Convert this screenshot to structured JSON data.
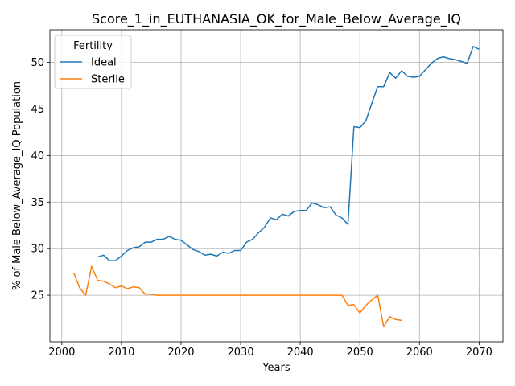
{
  "chart_data": {
    "type": "line",
    "title": "Score_1_in_EUTHANASIA_OK_for_Male_Below_Average_IQ",
    "xlabel": "Years",
    "ylabel": "% of Male Below_Average_IQ Population",
    "xlim": [
      1998,
      2074
    ],
    "ylim": [
      20.0,
      53.5
    ],
    "xticks": [
      2000,
      2010,
      2020,
      2030,
      2040,
      2050,
      2060,
      2070
    ],
    "yticks": [
      25,
      30,
      35,
      40,
      45,
      50
    ],
    "grid": true,
    "legend": {
      "title": "Fertility",
      "position": "top-left"
    },
    "series": [
      {
        "name": "Ideal",
        "color": "#1f77b4",
        "x": [
          2006,
          2007,
          2008,
          2009,
          2010,
          2011,
          2012,
          2013,
          2014,
          2015,
          2016,
          2017,
          2018,
          2019,
          2020,
          2021,
          2022,
          2023,
          2024,
          2025,
          2026,
          2027,
          2028,
          2029,
          2030,
          2031,
          2032,
          2033,
          2034,
          2035,
          2036,
          2037,
          2038,
          2039,
          2040,
          2041,
          2042,
          2043,
          2044,
          2045,
          2046,
          2047,
          2048,
          2049,
          2050,
          2051,
          2052,
          2053,
          2054,
          2055,
          2056,
          2057,
          2058,
          2059,
          2060,
          2061,
          2062,
          2063,
          2064,
          2065,
          2066,
          2067,
          2068,
          2069,
          2070
        ],
        "y": [
          29.1,
          29.3,
          28.7,
          28.7,
          29.2,
          29.8,
          30.1,
          30.2,
          30.7,
          30.7,
          31.0,
          31.0,
          31.3,
          31.0,
          30.9,
          30.4,
          29.9,
          29.7,
          29.3,
          29.4,
          29.2,
          29.6,
          29.5,
          29.8,
          29.8,
          30.7,
          31.0,
          31.7,
          32.3,
          33.3,
          33.1,
          33.7,
          33.5,
          34.0,
          34.1,
          34.1,
          34.9,
          34.7,
          34.4,
          34.5,
          33.6,
          33.3,
          32.6,
          43.1,
          43.0,
          43.7,
          45.6,
          47.4,
          47.4,
          48.9,
          48.3,
          49.1,
          48.5,
          48.4,
          48.5,
          49.2,
          49.9,
          50.4,
          50.6,
          50.4,
          50.3,
          50.1,
          49.9,
          51.7,
          51.4
        ]
      },
      {
        "name": "Sterile",
        "color": "#ff7f0e",
        "x": [
          2002,
          2003,
          2004,
          2005,
          2006,
          2007,
          2008,
          2009,
          2010,
          2011,
          2012,
          2013,
          2014,
          2015,
          2016,
          2017,
          2018,
          2019,
          2020,
          2021,
          2022,
          2023,
          2024,
          2025,
          2026,
          2027,
          2028,
          2029,
          2030,
          2031,
          2032,
          2033,
          2034,
          2035,
          2036,
          2037,
          2038,
          2039,
          2040,
          2041,
          2042,
          2043,
          2044,
          2045,
          2046,
          2047,
          2048,
          2049,
          2050,
          2051,
          2052,
          2053,
          2054,
          2055,
          2056,
          2057
        ],
        "y": [
          27.4,
          25.8,
          25.0,
          28.1,
          26.6,
          26.5,
          26.2,
          25.8,
          26.0,
          25.7,
          25.9,
          25.8,
          25.1,
          25.1,
          25.0,
          25.0,
          25.0,
          25.0,
          25.0,
          25.0,
          25.0,
          25.0,
          25.0,
          25.0,
          25.0,
          25.0,
          25.0,
          25.0,
          25.0,
          25.0,
          25.0,
          25.0,
          25.0,
          25.0,
          25.0,
          25.0,
          25.0,
          25.0,
          25.0,
          25.0,
          25.0,
          25.0,
          25.0,
          25.0,
          25.0,
          25.0,
          23.9,
          24.0,
          23.1,
          23.9,
          24.5,
          25.0,
          21.6,
          22.7,
          22.4,
          22.3
        ]
      }
    ]
  }
}
